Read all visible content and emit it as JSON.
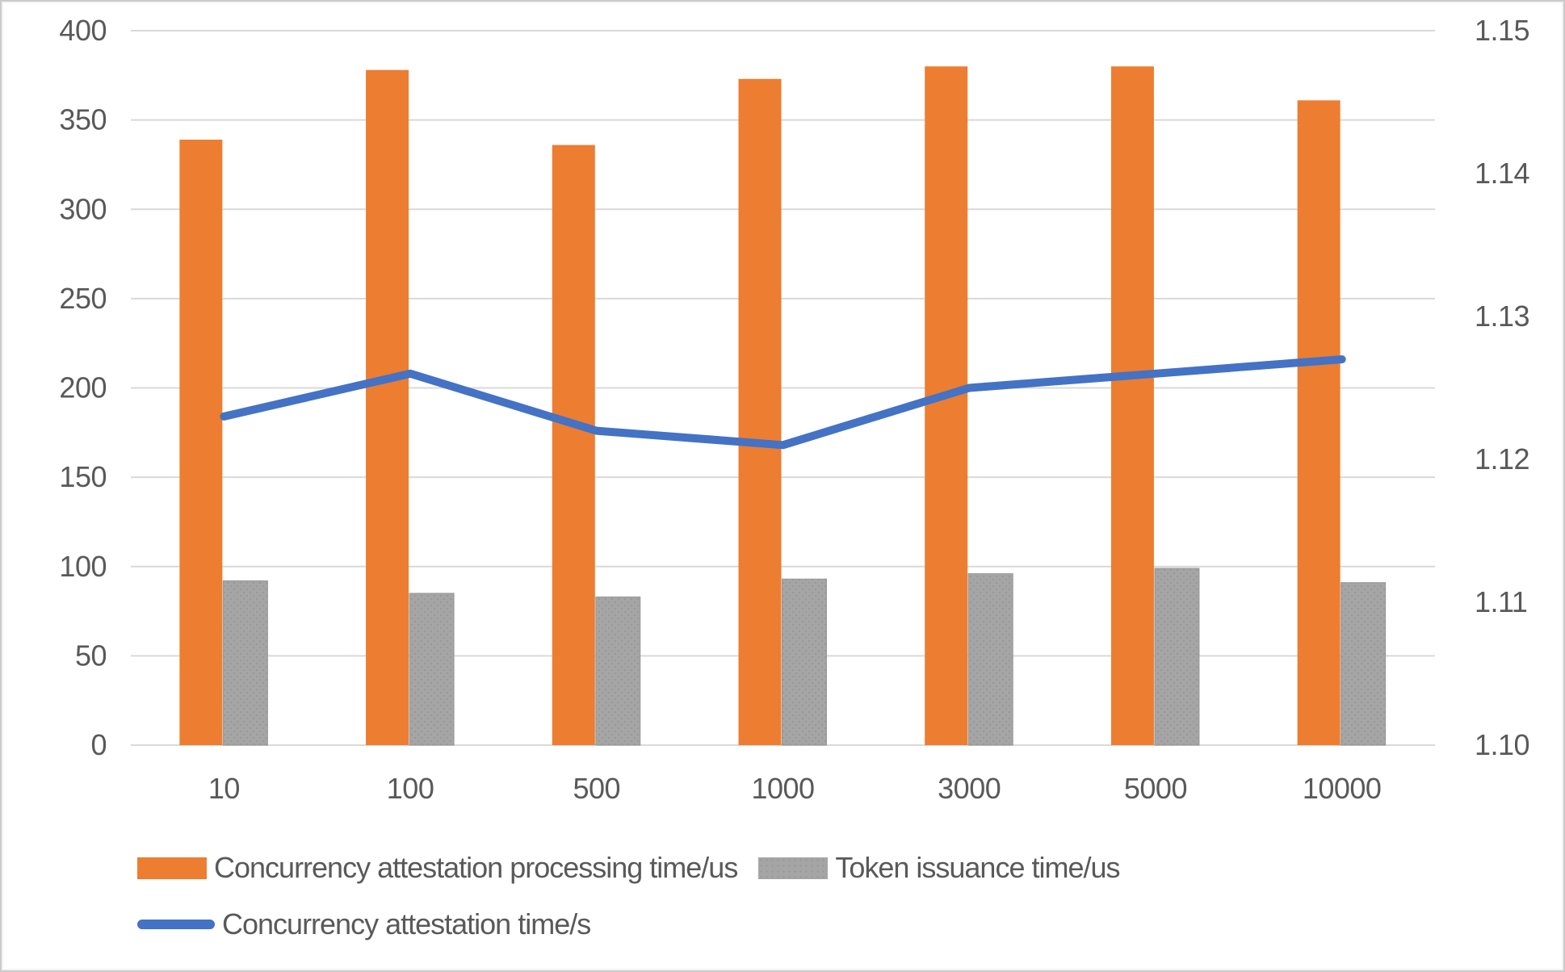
{
  "chart_data": {
    "type": "combo-bar-line",
    "categories": [
      "10",
      "100",
      "500",
      "1000",
      "3000",
      "5000",
      "10000"
    ],
    "series": [
      {
        "name": "Concurrency attestation processing time/us",
        "type": "bar",
        "axis": "left",
        "color": "#ED7D31",
        "values": [
          339,
          378,
          336,
          373,
          380,
          380,
          361
        ]
      },
      {
        "name": "Token issuance time/us",
        "type": "bar",
        "axis": "left",
        "color": "#A5A5A5",
        "color_dot": "#989898",
        "values": [
          92,
          85,
          83,
          93,
          96,
          99,
          91
        ]
      },
      {
        "name": "Concurrency attestation time/s",
        "type": "line",
        "axis": "right",
        "color": "#4472C4",
        "values": [
          1.123,
          1.126,
          1.122,
          1.121,
          1.125,
          1.126,
          1.127
        ]
      }
    ],
    "left_axis": {
      "min": 0,
      "max": 400,
      "step": 50,
      "ticks": [
        "0",
        "50",
        "100",
        "150",
        "200",
        "250",
        "300",
        "350",
        "400"
      ]
    },
    "right_axis": {
      "min": 1.1,
      "max": 1.15,
      "step": 0.01,
      "ticks": [
        "1.10",
        "1.11",
        "1.12",
        "1.13",
        "1.14",
        "1.15"
      ]
    },
    "grid": true,
    "gridline_color": "#D9D9D9",
    "axis_text_color": "#595959",
    "legend_position": "bottom-left",
    "title": "",
    "xlabel": "",
    "ylabel": ""
  }
}
